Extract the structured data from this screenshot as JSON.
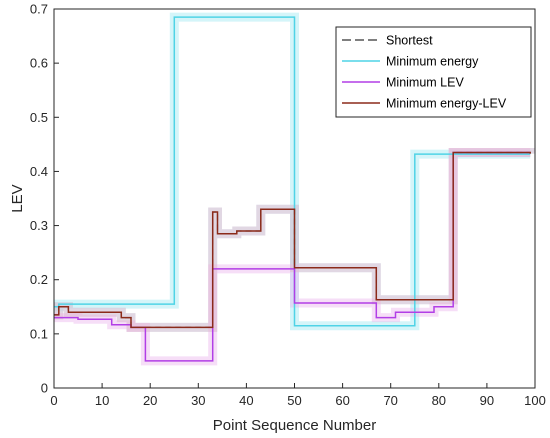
{
  "chart_data": {
    "type": "line",
    "xlabel": "Point Sequence Number",
    "ylabel": "LEV",
    "xlim": [
      0,
      100
    ],
    "ylim": [
      0,
      0.7
    ],
    "xticks": [
      0,
      10,
      20,
      30,
      40,
      50,
      60,
      70,
      80,
      90,
      100
    ],
    "yticks": [
      0,
      0.1,
      0.2,
      0.3,
      0.4,
      0.5,
      0.6,
      0.7
    ],
    "xtick_labels": [
      "0",
      "10",
      "20",
      "30",
      "40",
      "50",
      "60",
      "70",
      "80",
      "90",
      "100"
    ],
    "ytick_labels": [
      "0",
      "0.1",
      "0.2",
      "0.3",
      "0.4",
      "0.5",
      "0.6",
      "0.7"
    ],
    "grid": false,
    "legend_position": "top-right",
    "series": [
      {
        "name": "Shortest",
        "color": "#555555",
        "dash": "dashed",
        "x": [
          0,
          1,
          2,
          3,
          4,
          5,
          6,
          7,
          8,
          9,
          10,
          11,
          12,
          13,
          14,
          15,
          16,
          17,
          18,
          19,
          20,
          21,
          22,
          23,
          24,
          25,
          26,
          27,
          28,
          29,
          30,
          31,
          32,
          33,
          34,
          35,
          36,
          37,
          38,
          39,
          40,
          41,
          42,
          43,
          44,
          45,
          46,
          47,
          48,
          49,
          50,
          51,
          52,
          53,
          54,
          55,
          56,
          57,
          58,
          59,
          60,
          61,
          62,
          63,
          64,
          65,
          66,
          67,
          68,
          69,
          70,
          71,
          72,
          73,
          74,
          75,
          76,
          77,
          78,
          79,
          80,
          81,
          82,
          83,
          84,
          85,
          86,
          87,
          88,
          89,
          90,
          91,
          92,
          93,
          94,
          95,
          96,
          97,
          98,
          99
        ],
        "y": [
          0.135,
          0.15,
          0.15,
          0.14,
          0.14,
          0.14,
          0.14,
          0.14,
          0.14,
          0.14,
          0.14,
          0.14,
          0.14,
          0.14,
          0.13,
          0.13,
          0.112,
          0.112,
          0.112,
          0.112,
          0.112,
          0.112,
          0.112,
          0.112,
          0.112,
          0.112,
          0.112,
          0.112,
          0.112,
          0.112,
          0.112,
          0.112,
          0.112,
          0.325,
          0.285,
          0.285,
          0.285,
          0.285,
          0.29,
          0.29,
          0.29,
          0.29,
          0.29,
          0.33,
          0.33,
          0.33,
          0.33,
          0.33,
          0.33,
          0.33,
          0.222,
          0.222,
          0.222,
          0.222,
          0.222,
          0.222,
          0.222,
          0.222,
          0.222,
          0.222,
          0.222,
          0.222,
          0.222,
          0.222,
          0.222,
          0.222,
          0.222,
          0.163,
          0.163,
          0.163,
          0.163,
          0.163,
          0.163,
          0.163,
          0.163,
          0.163,
          0.163,
          0.163,
          0.163,
          0.163,
          0.163,
          0.163,
          0.163,
          0.435,
          0.435,
          0.435,
          0.435,
          0.435,
          0.435,
          0.435,
          0.435,
          0.435,
          0.435,
          0.435,
          0.435,
          0.435,
          0.435,
          0.435,
          0.435,
          0.433
        ]
      },
      {
        "name": "Minimum energy",
        "color": "#4fd3e6",
        "dash": "solid",
        "x": [
          0,
          1,
          2,
          3,
          4,
          5,
          6,
          7,
          8,
          9,
          10,
          11,
          12,
          13,
          14,
          15,
          16,
          17,
          18,
          19,
          20,
          21,
          22,
          23,
          24,
          25,
          26,
          27,
          28,
          29,
          30,
          31,
          32,
          33,
          34,
          35,
          36,
          37,
          38,
          39,
          40,
          41,
          42,
          43,
          44,
          45,
          46,
          47,
          48,
          49,
          50,
          51,
          52,
          53,
          54,
          55,
          56,
          57,
          58,
          59,
          60,
          61,
          62,
          63,
          64,
          65,
          66,
          67,
          68,
          69,
          70,
          71,
          72,
          73,
          74,
          75,
          76,
          77,
          78,
          79,
          80,
          81,
          82,
          83,
          84,
          85,
          86,
          87,
          88,
          89,
          90,
          91,
          92,
          93,
          94,
          95,
          96,
          97,
          98,
          99
        ],
        "y": [
          0.15,
          0.155,
          0.155,
          0.155,
          0.155,
          0.155,
          0.155,
          0.155,
          0.155,
          0.155,
          0.155,
          0.155,
          0.155,
          0.155,
          0.155,
          0.155,
          0.155,
          0.155,
          0.155,
          0.155,
          0.155,
          0.155,
          0.155,
          0.155,
          0.155,
          0.685,
          0.685,
          0.685,
          0.685,
          0.685,
          0.685,
          0.685,
          0.685,
          0.685,
          0.685,
          0.685,
          0.685,
          0.685,
          0.685,
          0.685,
          0.685,
          0.685,
          0.685,
          0.685,
          0.685,
          0.685,
          0.685,
          0.685,
          0.685,
          0.685,
          0.115,
          0.115,
          0.115,
          0.115,
          0.115,
          0.115,
          0.115,
          0.115,
          0.115,
          0.115,
          0.115,
          0.115,
          0.115,
          0.115,
          0.115,
          0.115,
          0.115,
          0.115,
          0.115,
          0.115,
          0.115,
          0.115,
          0.115,
          0.115,
          0.115,
          0.432,
          0.432,
          0.432,
          0.432,
          0.432,
          0.432,
          0.432,
          0.432,
          0.432,
          0.432,
          0.432,
          0.432,
          0.432,
          0.432,
          0.432,
          0.432,
          0.432,
          0.432,
          0.432,
          0.432,
          0.432,
          0.432,
          0.432,
          0.432,
          0.432
        ]
      },
      {
        "name": "Minimum LEV",
        "color": "#b23fe6",
        "dash": "solid",
        "x": [
          0,
          1,
          2,
          3,
          4,
          5,
          6,
          7,
          8,
          9,
          10,
          11,
          12,
          13,
          14,
          15,
          16,
          17,
          18,
          19,
          20,
          21,
          22,
          23,
          24,
          25,
          26,
          27,
          28,
          29,
          30,
          31,
          32,
          33,
          34,
          35,
          36,
          37,
          38,
          39,
          40,
          41,
          42,
          43,
          44,
          45,
          46,
          47,
          48,
          49,
          50,
          51,
          52,
          53,
          54,
          55,
          56,
          57,
          58,
          59,
          60,
          61,
          62,
          63,
          64,
          65,
          66,
          67,
          68,
          69,
          70,
          71,
          72,
          73,
          74,
          75,
          76,
          77,
          78,
          79,
          80,
          81,
          82,
          83,
          84,
          85,
          86,
          87,
          88,
          89,
          90,
          91,
          92,
          93,
          94,
          95,
          96,
          97,
          98,
          99
        ],
        "y": [
          0.13,
          0.13,
          0.13,
          0.13,
          0.13,
          0.127,
          0.127,
          0.127,
          0.127,
          0.127,
          0.127,
          0.127,
          0.117,
          0.117,
          0.117,
          0.117,
          0.112,
          0.112,
          0.112,
          0.05,
          0.05,
          0.05,
          0.05,
          0.05,
          0.05,
          0.05,
          0.05,
          0.05,
          0.05,
          0.05,
          0.05,
          0.05,
          0.05,
          0.22,
          0.22,
          0.22,
          0.22,
          0.22,
          0.22,
          0.22,
          0.22,
          0.22,
          0.22,
          0.22,
          0.22,
          0.22,
          0.22,
          0.22,
          0.22,
          0.22,
          0.157,
          0.157,
          0.157,
          0.157,
          0.157,
          0.157,
          0.157,
          0.157,
          0.157,
          0.157,
          0.157,
          0.157,
          0.157,
          0.157,
          0.157,
          0.157,
          0.157,
          0.13,
          0.13,
          0.13,
          0.13,
          0.14,
          0.14,
          0.14,
          0.14,
          0.14,
          0.14,
          0.14,
          0.14,
          0.15,
          0.15,
          0.15,
          0.15,
          0.435,
          0.435,
          0.435,
          0.435,
          0.435,
          0.435,
          0.435,
          0.435,
          0.435,
          0.435,
          0.435,
          0.435,
          0.435,
          0.435,
          0.435,
          0.435,
          0.435
        ]
      },
      {
        "name": "Minimum energy-LEV",
        "color": "#8b2a1a",
        "dash": "solid",
        "x": [
          0,
          1,
          2,
          3,
          4,
          5,
          6,
          7,
          8,
          9,
          10,
          11,
          12,
          13,
          14,
          15,
          16,
          17,
          18,
          19,
          20,
          21,
          22,
          23,
          24,
          25,
          26,
          27,
          28,
          29,
          30,
          31,
          32,
          33,
          34,
          35,
          36,
          37,
          38,
          39,
          40,
          41,
          42,
          43,
          44,
          45,
          46,
          47,
          48,
          49,
          50,
          51,
          52,
          53,
          54,
          55,
          56,
          57,
          58,
          59,
          60,
          61,
          62,
          63,
          64,
          65,
          66,
          67,
          68,
          69,
          70,
          71,
          72,
          73,
          74,
          75,
          76,
          77,
          78,
          79,
          80,
          81,
          82,
          83,
          84,
          85,
          86,
          87,
          88,
          89,
          90,
          91,
          92,
          93,
          94,
          95,
          96,
          97,
          98,
          99
        ],
        "y": [
          0.135,
          0.15,
          0.15,
          0.14,
          0.14,
          0.14,
          0.14,
          0.14,
          0.14,
          0.14,
          0.14,
          0.14,
          0.14,
          0.14,
          0.13,
          0.13,
          0.112,
          0.112,
          0.112,
          0.112,
          0.112,
          0.112,
          0.112,
          0.112,
          0.112,
          0.112,
          0.112,
          0.112,
          0.112,
          0.112,
          0.112,
          0.112,
          0.112,
          0.325,
          0.285,
          0.285,
          0.285,
          0.285,
          0.29,
          0.29,
          0.29,
          0.29,
          0.29,
          0.33,
          0.33,
          0.33,
          0.33,
          0.33,
          0.33,
          0.33,
          0.222,
          0.222,
          0.222,
          0.222,
          0.222,
          0.222,
          0.222,
          0.222,
          0.222,
          0.222,
          0.222,
          0.222,
          0.222,
          0.222,
          0.222,
          0.222,
          0.222,
          0.163,
          0.163,
          0.163,
          0.163,
          0.163,
          0.163,
          0.163,
          0.163,
          0.163,
          0.163,
          0.163,
          0.163,
          0.163,
          0.163,
          0.163,
          0.163,
          0.435,
          0.435,
          0.435,
          0.435,
          0.435,
          0.435,
          0.435,
          0.435,
          0.435,
          0.435,
          0.435,
          0.435,
          0.435,
          0.435,
          0.435,
          0.435,
          0.433
        ]
      }
    ]
  }
}
